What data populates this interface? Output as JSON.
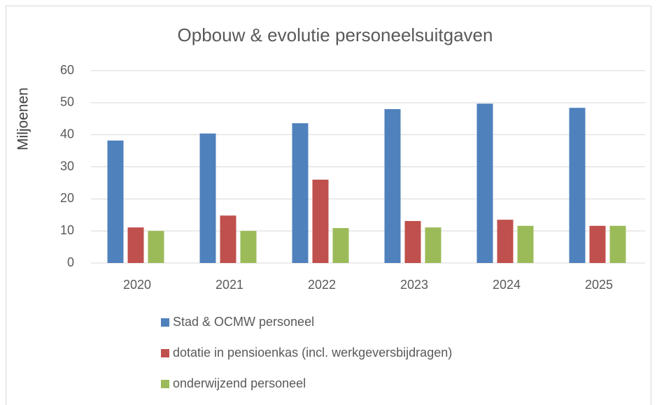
{
  "chart_data": {
    "type": "bar",
    "title": "Opbouw & evolutie personeelsuitgaven",
    "y_label": "Miljoenen",
    "categories": [
      "2020",
      "2021",
      "2022",
      "2023",
      "2024",
      "2025"
    ],
    "series": [
      {
        "name": "Stad & OCMW personeel",
        "color": "#4f81bd",
        "values": [
          38.2,
          40.4,
          43.6,
          48.0,
          49.7,
          48.4
        ]
      },
      {
        "name": "dotatie in pensioenkas (incl. werkgeversbijdragen)",
        "color": "#c0504d",
        "values": [
          11.1,
          14.8,
          26.0,
          13.1,
          13.5,
          11.6
        ]
      },
      {
        "name": "onderwijzend personeel",
        "color": "#9bbb59",
        "values": [
          10.0,
          10.0,
          10.9,
          11.1,
          11.6,
          11.6
        ]
      }
    ],
    "ylim": [
      0,
      60
    ],
    "yticks": [
      0,
      10,
      20,
      30,
      40,
      50,
      60
    ],
    "grid": true
  }
}
